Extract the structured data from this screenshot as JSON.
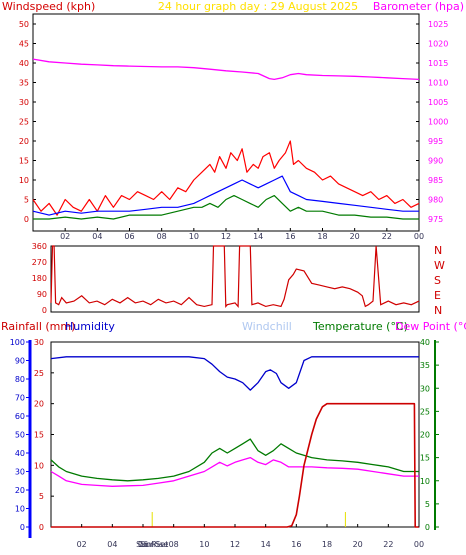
{
  "colors": {
    "bg": "#ffffff",
    "plot_bg": "#ffffff",
    "axis": "#000000",
    "title": "#ffe000",
    "wind_axis": "#d40000",
    "baro": "#ff00ff",
    "dir": "#d00000",
    "rain": "#cc0000",
    "hum": "#0000cc",
    "windchill": "#b0c8f0",
    "temp": "#007a00",
    "dew": "#ff00ff",
    "sun": "#e6e000",
    "blue": "#0000ff"
  },
  "chart_data": [
    {
      "type": "line",
      "panel": "wind-barometer",
      "title": "24 hour graph day : 29 August 2025",
      "ylabel_left": "Windspeed (kph)",
      "ylabel_right": "Barometer (hpa)",
      "x_ticks": [
        "02",
        "04",
        "06",
        "08",
        "10",
        "12",
        "14",
        "16",
        "18",
        "20",
        "22",
        "00"
      ],
      "y_left_ticks": [
        "0",
        "5",
        "10",
        "15",
        "20",
        "25",
        "30",
        "35",
        "40",
        "45",
        "50"
      ],
      "y_right_ticks": [
        "975",
        "980",
        "985",
        "990",
        "995",
        "1000",
        "1005",
        "1010",
        "1015",
        "1020",
        "1025"
      ],
      "ylim_left": [
        0,
        50
      ],
      "ylim_right": [
        975,
        1025
      ],
      "xlim_hours": [
        0,
        24
      ],
      "series": [
        {
          "color": "#ff00ff",
          "x": [
            0,
            1,
            2,
            3,
            4,
            5,
            6,
            7,
            8,
            9,
            10,
            11,
            12,
            13,
            14,
            14.7,
            15,
            15.5,
            16,
            16.5,
            17,
            18,
            19,
            20,
            21,
            22,
            23,
            24
          ],
          "y": [
            1016,
            1015.3,
            1015,
            1014.7,
            1014.5,
            1014.3,
            1014.2,
            1014.1,
            1014,
            1014,
            1013.8,
            1013.4,
            1013,
            1012.7,
            1012.3,
            1011,
            1010.8,
            1011.2,
            1012,
            1012.3,
            1012,
            1011.8,
            1011.7,
            1011.6,
            1011.4,
            1011.2,
            1011,
            1010.8
          ]
        },
        {
          "color": "#ff0000",
          "x": [
            0,
            0.5,
            1,
            1.5,
            2,
            2.5,
            3,
            3.5,
            4,
            4.5,
            5,
            5.5,
            6,
            6.5,
            7,
            7.5,
            8,
            8.5,
            9,
            9.5,
            10,
            10.5,
            11,
            11.3,
            11.6,
            12,
            12.3,
            12.7,
            13,
            13.3,
            13.7,
            14,
            14.3,
            14.7,
            15,
            15.3,
            15.7,
            16,
            16.2,
            16.5,
            17,
            17.5,
            18,
            18.5,
            19,
            19.5,
            20,
            20.5,
            21,
            21.5,
            22,
            22.5,
            23,
            23.5,
            24
          ],
          "y": [
            5,
            2,
            4,
            1,
            5,
            3,
            2,
            5,
            2,
            6,
            3,
            6,
            5,
            7,
            6,
            5,
            7,
            5,
            8,
            7,
            10,
            12,
            14,
            12,
            16,
            13,
            17,
            15,
            18,
            12,
            14,
            13,
            16,
            17,
            13,
            15,
            17,
            20,
            14,
            15,
            13,
            12,
            10,
            11,
            9,
            8,
            7,
            6,
            7,
            5,
            6,
            4,
            5,
            3,
            4
          ]
        },
        {
          "color": "#0000ff",
          "x": [
            0,
            1,
            2,
            3,
            4,
            5,
            6,
            7,
            8,
            9,
            10,
            10.5,
            11,
            11.5,
            12,
            12.5,
            13,
            13.5,
            14,
            14.5,
            15,
            15.5,
            16,
            16.5,
            17,
            18,
            19,
            20,
            21,
            22,
            23,
            24
          ],
          "y": [
            2,
            1,
            2,
            1.5,
            2,
            2,
            2,
            2.5,
            3,
            3,
            4,
            5,
            6,
            7,
            8,
            9,
            10,
            9,
            8,
            9,
            10,
            11,
            7,
            6,
            5,
            4.5,
            4,
            3.5,
            3,
            2.5,
            2,
            2
          ]
        },
        {
          "color": "#007a00",
          "x": [
            0,
            1,
            2,
            3,
            4,
            5,
            6,
            7,
            8,
            9,
            10,
            10.5,
            11,
            11.5,
            12,
            12.5,
            13,
            13.5,
            14,
            14.5,
            15,
            15.5,
            16,
            16.5,
            17,
            18,
            19,
            20,
            21,
            22,
            23,
            24
          ],
          "y": [
            0,
            0,
            0.5,
            0,
            0.5,
            0,
            1,
            1,
            1,
            2,
            3,
            3,
            4,
            3,
            5,
            6,
            5,
            4,
            3,
            5,
            6,
            4,
            2,
            3,
            2,
            2,
            1,
            1,
            0.5,
            0.5,
            0,
            0
          ]
        }
      ]
    },
    {
      "type": "line",
      "panel": "wind-direction",
      "x_ticks": [
        "02",
        "04",
        "06",
        "08",
        "10",
        "12",
        "14",
        "16",
        "18",
        "20",
        "22",
        "00"
      ],
      "y_ticks": [
        "0",
        "90",
        "180",
        "270",
        "360"
      ],
      "compass": [
        "N",
        "W",
        "S",
        "E",
        "N"
      ],
      "ylim": [
        0,
        360
      ],
      "xlim_hours": [
        0,
        24
      ],
      "series": [
        {
          "color": "#d00000",
          "x": [
            0,
            0.1,
            0.2,
            0.3,
            0.5,
            0.7,
            1,
            1.5,
            2,
            2.5,
            3,
            3.5,
            4,
            4.5,
            5,
            5.5,
            6,
            6.5,
            7,
            7.5,
            8,
            8.5,
            9,
            9.5,
            10,
            10.5,
            10.6,
            10.7,
            11.3,
            11.4,
            11.5,
            12,
            12.2,
            12.3,
            12.5,
            12.9,
            13,
            13.1,
            13.5,
            14,
            14.5,
            15,
            15.2,
            15.5,
            15.8,
            16,
            16.5,
            17,
            17.5,
            18,
            18.5,
            19,
            19.5,
            20,
            20.3,
            20.5,
            20.7,
            21,
            21.2,
            21.5,
            22,
            22.5,
            23,
            23.5,
            24
          ],
          "y": [
            40,
            360,
            360,
            40,
            30,
            70,
            40,
            50,
            80,
            40,
            50,
            30,
            60,
            40,
            70,
            40,
            50,
            30,
            60,
            40,
            50,
            30,
            70,
            30,
            20,
            30,
            360,
            360,
            360,
            20,
            30,
            40,
            20,
            360,
            360,
            360,
            360,
            30,
            40,
            20,
            30,
            20,
            60,
            170,
            200,
            230,
            220,
            150,
            140,
            130,
            120,
            130,
            120,
            100,
            80,
            20,
            30,
            50,
            360,
            30,
            50,
            30,
            40,
            30,
            50
          ]
        }
      ]
    },
    {
      "type": "line",
      "panel": "rain-humidity-temperature",
      "legend": [
        "Rainfall (mm)",
        "Humidity",
        "Windchill",
        "Temperature (°C)",
        "Dew Point (°C)"
      ],
      "x_ticks": [
        "02",
        "04",
        "06",
        "08",
        "10",
        "12",
        "14",
        "16",
        "18",
        "20",
        "22",
        "00"
      ],
      "x_markers": [
        "SunRise",
        "SunSet"
      ],
      "humidity_ticks": [
        "0",
        "10",
        "20",
        "30",
        "40",
        "50",
        "60",
        "70",
        "80",
        "90",
        "100"
      ],
      "rain_ticks": [
        "0",
        "5",
        "10",
        "15",
        "20",
        "25",
        "30"
      ],
      "temp_ticks": [
        "0",
        "5",
        "10",
        "15",
        "20",
        "25",
        "30",
        "35",
        "40"
      ],
      "ylim_humidity": [
        0,
        100
      ],
      "ylim_rain": [
        0,
        30
      ],
      "ylim_temp": [
        0,
        40
      ],
      "xlim_hours": [
        0,
        24
      ],
      "series": [
        {
          "color": "#0000cc",
          "axis": "humidity",
          "x": [
            0,
            1,
            2,
            3,
            4,
            5,
            6,
            7,
            8,
            9,
            10,
            10.5,
            11,
            11.5,
            12,
            12.5,
            13,
            13.5,
            14,
            14.3,
            14.7,
            15,
            15.5,
            16,
            16.5,
            17,
            18,
            19,
            20,
            21,
            22,
            23,
            24
          ],
          "y": [
            91,
            92,
            92,
            92,
            92,
            92,
            92,
            92,
            92,
            92,
            91,
            88,
            84,
            81,
            80,
            78,
            74,
            78,
            84,
            85,
            83,
            78,
            75,
            78,
            90,
            92,
            92,
            92,
            92,
            92,
            92,
            92,
            92
          ]
        },
        {
          "color": "#007a00",
          "axis": "temp",
          "x": [
            0,
            0.5,
            1,
            2,
            3,
            4,
            5,
            6,
            7,
            8,
            9,
            10,
            10.5,
            11,
            11.5,
            12,
            12.5,
            13,
            13.5,
            14,
            14.5,
            15,
            15.5,
            16,
            17,
            18,
            19,
            20,
            21,
            22,
            23,
            24
          ],
          "y": [
            14.5,
            13,
            12,
            11,
            10.5,
            10.2,
            10,
            10.2,
            10.5,
            11,
            12,
            14,
            16,
            17,
            16,
            17,
            18,
            19,
            16.5,
            15.5,
            16.5,
            18,
            17,
            16,
            15,
            14.5,
            14.3,
            14,
            13.5,
            13,
            12,
            12
          ]
        },
        {
          "color": "#ff00ff",
          "axis": "temp",
          "x": [
            0,
            0.5,
            1,
            2,
            3,
            4,
            5,
            6,
            7,
            8,
            9,
            10,
            10.5,
            11,
            11.5,
            12,
            12.5,
            13,
            13.5,
            14,
            14.5,
            15,
            15.5,
            16,
            17,
            18,
            19,
            20,
            21,
            22,
            23,
            24
          ],
          "y": [
            12,
            11,
            10,
            9.2,
            9,
            8.8,
            8.9,
            9,
            9.5,
            10,
            11,
            12,
            13,
            14,
            13.2,
            14,
            14.5,
            15,
            14,
            13.5,
            14.5,
            14,
            13,
            13,
            13,
            12.8,
            12.7,
            12.5,
            12,
            11.5,
            11,
            11
          ]
        },
        {
          "color": "#cc0000",
          "axis": "rain",
          "x": [
            0,
            15.4,
            15.7,
            16,
            16.2,
            16.5,
            17,
            17.3,
            17.7,
            18,
            19,
            20,
            21,
            22,
            23,
            23.7,
            23.75,
            24
          ],
          "y": [
            0,
            0,
            0.2,
            2,
            5,
            10,
            15,
            17.5,
            19.5,
            20,
            20,
            20,
            20,
            20,
            20,
            20,
            0,
            0
          ]
        }
      ]
    }
  ]
}
